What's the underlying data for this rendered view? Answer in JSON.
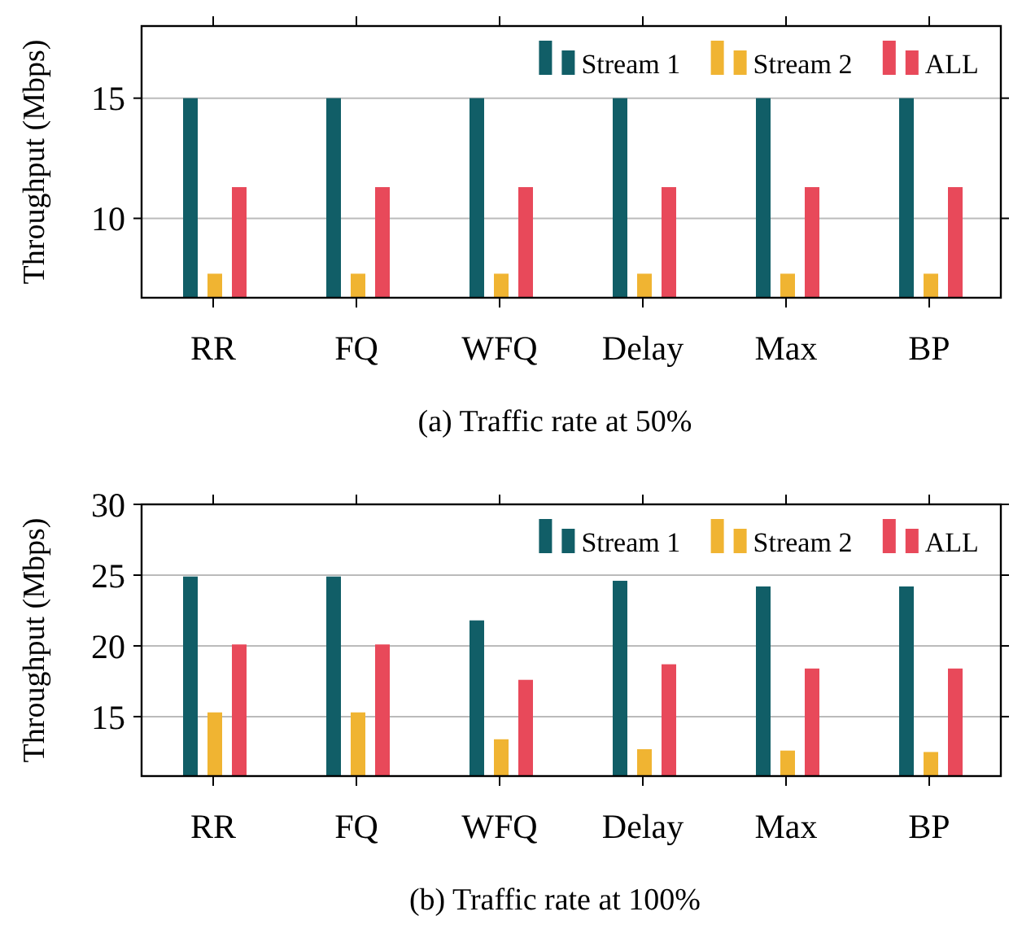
{
  "chart_data": [
    {
      "type": "bar",
      "title": "(a) Traffic rate at 50%",
      "ylabel": "Throughput (Mbps)",
      "categories": [
        "RR",
        "FQ",
        "WFQ",
        "Delay",
        "Max",
        "BP"
      ],
      "series": [
        {
          "name": "Stream 1",
          "color": "#115e67",
          "values": [
            15,
            15,
            15,
            15,
            15,
            15
          ]
        },
        {
          "name": "Stream 2",
          "color": "#f0b432",
          "values": [
            7.7,
            7.7,
            7.7,
            7.7,
            7.7,
            7.7
          ]
        },
        {
          "name": "ALL",
          "color": "#e8495a",
          "values": [
            11.3,
            11.3,
            11.3,
            11.3,
            11.3,
            11.3
          ]
        }
      ],
      "ylim": [
        6.7,
        18
      ],
      "yticks": [
        10,
        15
      ],
      "grid": "y",
      "legend": "top right"
    },
    {
      "type": "bar",
      "title": "(b) Traffic rate at 100%",
      "ylabel": "Throughput (Mbps)",
      "categories": [
        "RR",
        "FQ",
        "WFQ",
        "Delay",
        "Max",
        "BP"
      ],
      "series": [
        {
          "name": "Stream 1",
          "color": "#115e67",
          "values": [
            24.9,
            24.9,
            21.8,
            24.6,
            24.2,
            24.2
          ]
        },
        {
          "name": "Stream 2",
          "color": "#f0b432",
          "values": [
            15.3,
            15.3,
            13.4,
            12.7,
            12.6,
            12.5
          ]
        },
        {
          "name": "ALL",
          "color": "#e8495a",
          "values": [
            20.1,
            20.1,
            17.6,
            18.7,
            18.4,
            18.4
          ]
        }
      ],
      "ylim": [
        10.8,
        30
      ],
      "yticks": [
        15,
        20,
        25,
        30
      ],
      "grid": "y",
      "legend": "top right"
    }
  ]
}
